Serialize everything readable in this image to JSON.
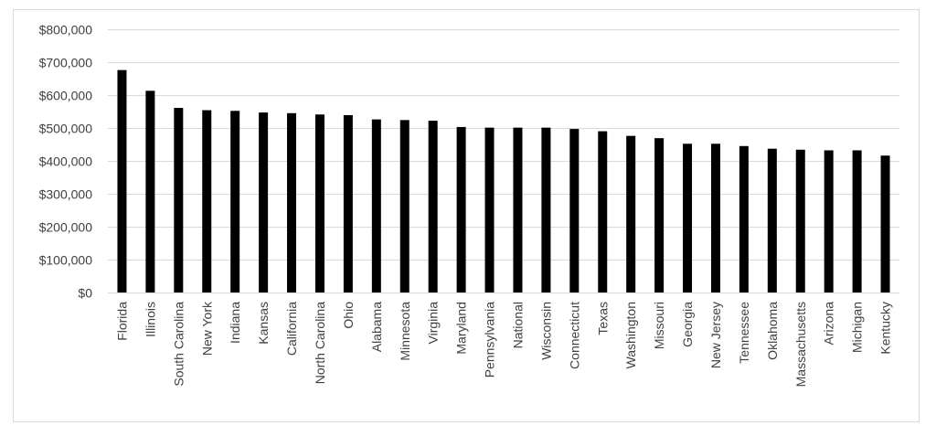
{
  "chart_data": {
    "type": "bar",
    "title": "",
    "xlabel": "",
    "ylabel": "",
    "ylim": [
      0,
      800000
    ],
    "y_ticks": [
      0,
      100000,
      200000,
      300000,
      400000,
      500000,
      600000,
      700000,
      800000
    ],
    "y_tick_labels": [
      "$0",
      "$100,000",
      "$200,000",
      "$300,000",
      "$400,000",
      "$500,000",
      "$600,000",
      "$700,000",
      "$800,000"
    ],
    "grid": true,
    "legend": "none",
    "bar_color": "#000000",
    "grid_color": "#d9d9d9",
    "categories": [
      "Florida",
      "Illinois",
      "South Carolina",
      "New York",
      "Indiana",
      "Kansas",
      "California",
      "North Carolina",
      "Ohio",
      "Alabama",
      "Minnesota",
      "Virginia",
      "Maryland",
      "Pennsylvania",
      "National",
      "Wisconsin",
      "Connecticut",
      "Texas",
      "Washington",
      "Missouri",
      "Georgia",
      "New Jersey",
      "Tennessee",
      "Oklahoma",
      "Massachusetts",
      "Arizona",
      "Michigan",
      "Kentucky"
    ],
    "values": [
      676000,
      613000,
      561000,
      554000,
      552000,
      547000,
      545000,
      541000,
      539000,
      526000,
      524000,
      522000,
      503000,
      501000,
      501000,
      501000,
      497000,
      490000,
      476000,
      469000,
      452000,
      452000,
      445000,
      437000,
      434000,
      432000,
      432000,
      416000
    ]
  }
}
